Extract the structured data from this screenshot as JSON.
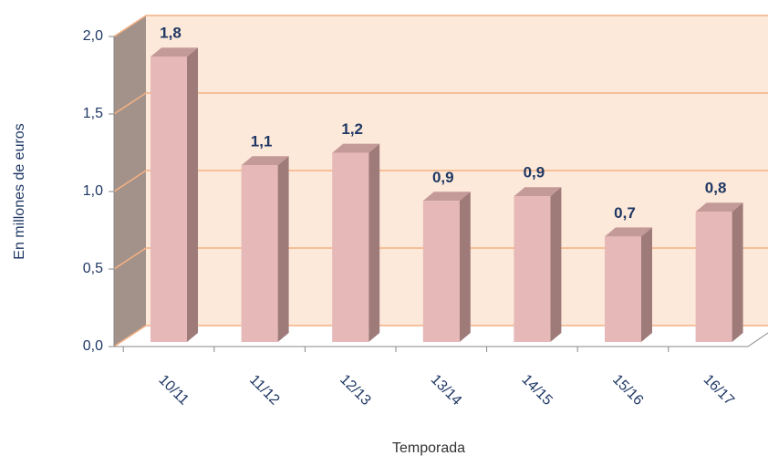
{
  "chart_data": {
    "type": "bar",
    "categories": [
      "10/11",
      "11/12",
      "12/13",
      "13/14",
      "14/15",
      "15/16",
      "16/17"
    ],
    "values": [
      1.84,
      1.14,
      1.22,
      0.91,
      0.94,
      0.68,
      0.84
    ],
    "value_labels": [
      "1,8",
      "1,1",
      "1,2",
      "0,9",
      "0,9",
      "0,7",
      "0,8"
    ],
    "color": "#e6b8b7",
    "ylim": [
      0,
      2
    ],
    "yticks": [
      {
        "value": 0,
        "label": "0,0"
      },
      {
        "value": 0.5,
        "label": "0,5"
      },
      {
        "value": 1,
        "label": "1,0"
      },
      {
        "value": 1.5,
        "label": "1,5"
      },
      {
        "value": 2,
        "label": "2,0"
      }
    ],
    "y_label": "En millones de euros",
    "x_label": "Temporada",
    "grid": true
  }
}
